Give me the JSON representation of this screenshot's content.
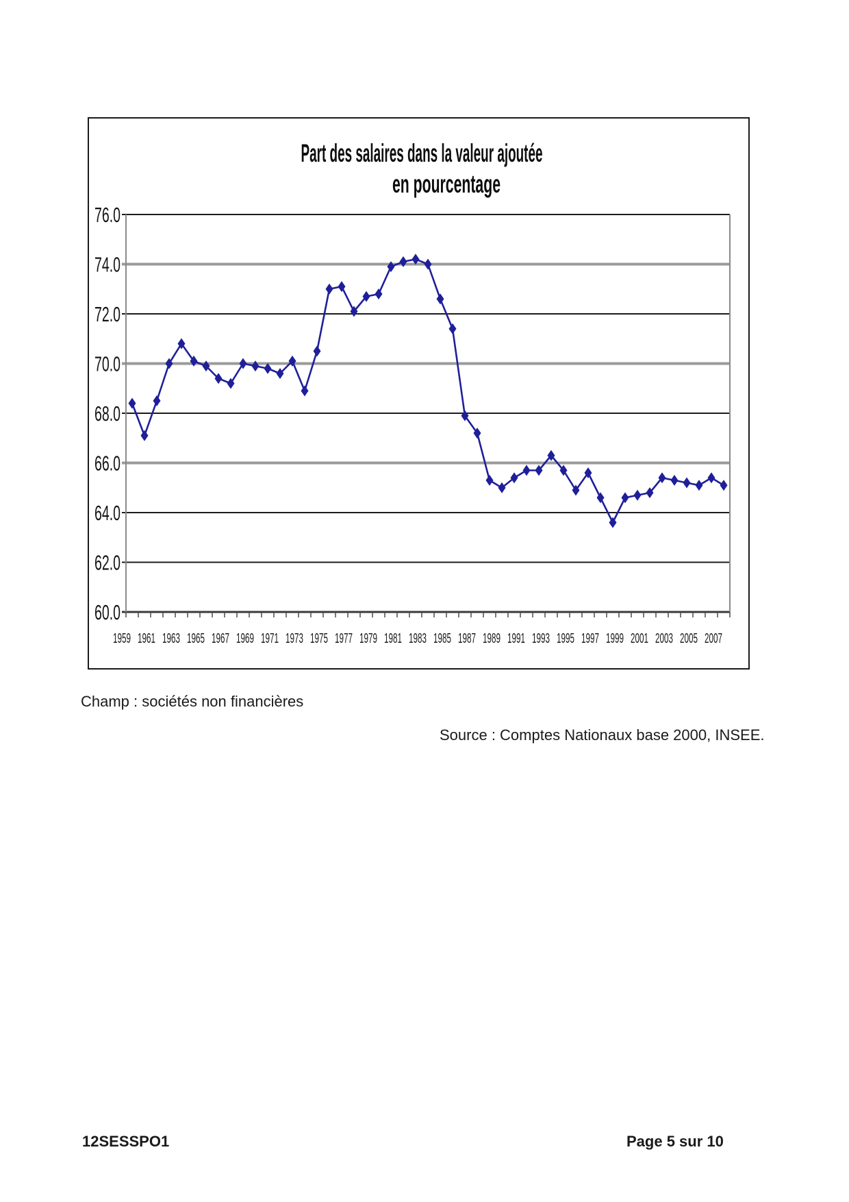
{
  "page": {
    "champ_note": "Champ : sociétés non financières",
    "source_note": "Source : Comptes Nationaux base 2000, INSEE.",
    "footer_code": "12SESSPO1",
    "footer_page": "Page 5 sur 10"
  },
  "chart_data": {
    "type": "line",
    "title": "Part des salaires dans la valeur ajoutée",
    "subtitle": "en pourcentage",
    "x": [
      1959,
      1960,
      1961,
      1962,
      1963,
      1964,
      1965,
      1966,
      1967,
      1968,
      1969,
      1970,
      1971,
      1972,
      1973,
      1974,
      1975,
      1976,
      1977,
      1978,
      1979,
      1980,
      1981,
      1982,
      1983,
      1984,
      1985,
      1986,
      1987,
      1988,
      1989,
      1990,
      1991,
      1992,
      1993,
      1994,
      1995,
      1996,
      1997,
      1998,
      1999,
      2000,
      2001,
      2002,
      2003,
      2004,
      2005,
      2006,
      2007
    ],
    "values": [
      68.4,
      67.1,
      68.5,
      70.0,
      70.8,
      70.1,
      69.9,
      69.4,
      69.2,
      70.0,
      69.9,
      69.8,
      69.6,
      70.1,
      68.9,
      70.5,
      73.0,
      73.1,
      72.1,
      72.7,
      72.8,
      73.9,
      74.1,
      74.2,
      74.0,
      72.6,
      71.4,
      67.9,
      67.2,
      65.3,
      65.0,
      65.4,
      65.7,
      65.7,
      66.3,
      65.7,
      64.9,
      65.6,
      64.6,
      63.6,
      64.6,
      64.7,
      64.8,
      65.4,
      65.3,
      65.2,
      65.1,
      65.4,
      65.1
    ],
    "ylim": [
      60.0,
      76.0
    ],
    "ytick_labels": [
      "76.0",
      "74.0",
      "72.0",
      "70.0",
      "68.0",
      "66.0",
      "64.0",
      "62.0",
      "60.0"
    ],
    "xtick_labels": [
      "1959",
      "1961",
      "1963",
      "1965",
      "1967",
      "1969",
      "1971",
      "1973",
      "1975",
      "1977",
      "1979",
      "1981",
      "1983",
      "1985",
      "1987",
      "1989",
      "1991",
      "1993",
      "1995",
      "1997",
      "1999",
      "2001",
      "2003",
      "2005",
      "2007"
    ],
    "grid": true,
    "legend": false,
    "line_color": "#1f1f9a",
    "marker": "diamond"
  }
}
